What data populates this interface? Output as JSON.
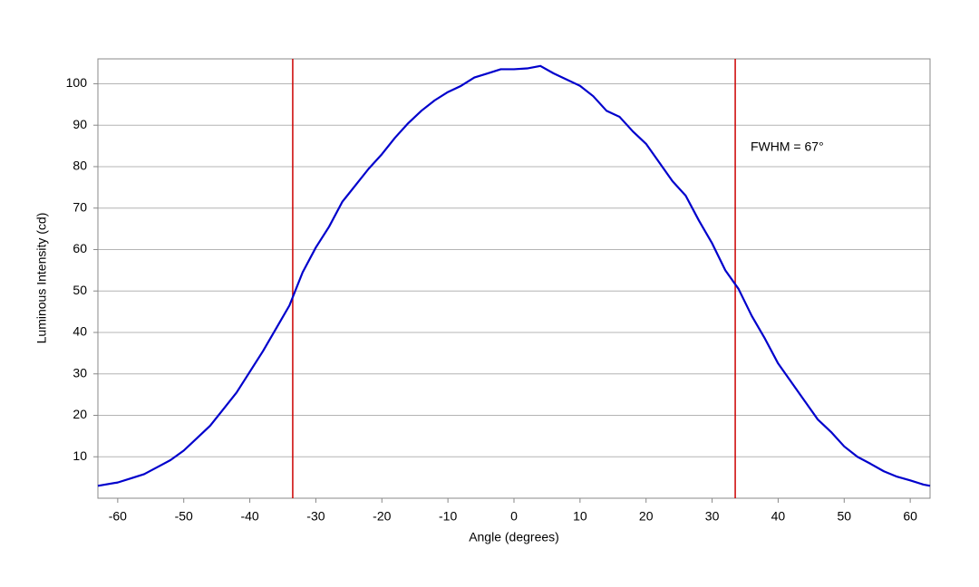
{
  "chart_data": {
    "type": "line",
    "x_label": "Angle (degrees)",
    "y_label": "Luminous Intensity (cd)",
    "annotation": "FWHM = 67°",
    "x": [
      -63,
      -60,
      -58,
      -56,
      -54,
      -52,
      -50,
      -48,
      -46,
      -44,
      -42,
      -40,
      -38,
      -36,
      -34,
      -32,
      -30,
      -28,
      -26,
      -24,
      -22,
      -20,
      -18,
      -16,
      -14,
      -12,
      -10,
      -8,
      -6,
      -4,
      -2,
      0,
      2,
      4,
      6,
      8,
      10,
      12,
      14,
      16,
      18,
      20,
      22,
      24,
      26,
      28,
      30,
      32,
      34,
      36,
      38,
      40,
      42,
      44,
      46,
      48,
      50,
      52,
      54,
      56,
      58,
      60,
      62,
      63
    ],
    "series": [
      {
        "name": "Intensity",
        "color": "#0000cc",
        "values": [
          3,
          3.8,
          4.8,
          5.8,
          7.5,
          9.2,
          11.5,
          14.5,
          17.5,
          21.5,
          25.5,
          30.5,
          35.5,
          41,
          46.5,
          54.5,
          60.5,
          65.5,
          71.5,
          75.5,
          79.5,
          83,
          87,
          90.5,
          93.5,
          96,
          98,
          99.5,
          101.5,
          102.5,
          103.5,
          103.5,
          103.7,
          104.3,
          102.5,
          101,
          99.5,
          97,
          93.5,
          92,
          88.5,
          85.5,
          81,
          76.5,
          73,
          67,
          61.5,
          55,
          50.5,
          44,
          38.5,
          32.5,
          28,
          23.5,
          19,
          16,
          12.5,
          10,
          8.3,
          6.5,
          5.2,
          4.3,
          3.3,
          3
        ]
      }
    ],
    "vlines": [
      -33.5,
      33.5
    ],
    "vline_color": "#cc0000",
    "xlim": [
      -63,
      63
    ],
    "ylim": [
      0,
      106
    ],
    "xticks": [
      -60,
      -50,
      -40,
      -30,
      -20,
      -10,
      0,
      10,
      20,
      30,
      40,
      50,
      60
    ],
    "yticks": [
      10,
      20,
      30,
      40,
      50,
      60,
      70,
      80,
      90,
      100
    ],
    "grid": true
  }
}
